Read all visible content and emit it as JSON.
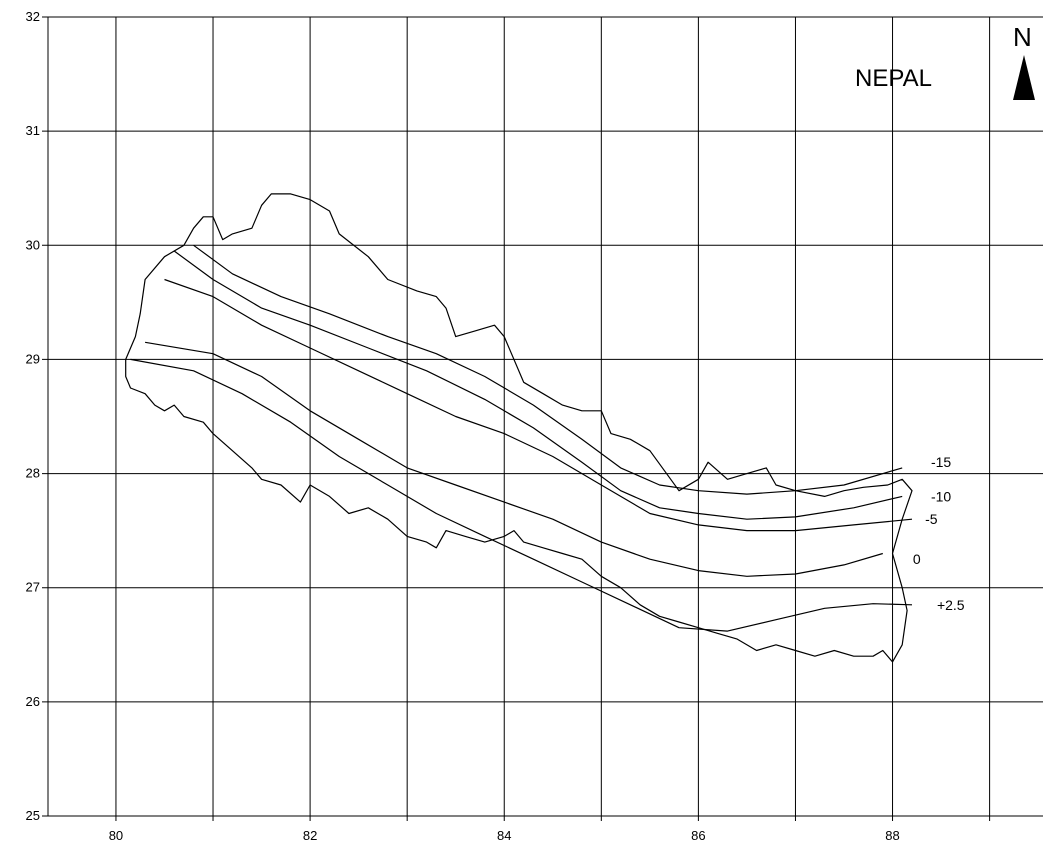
{
  "map": {
    "title": "NEPAL",
    "north_label": "N",
    "x_ticks": [
      80,
      82,
      84,
      86,
      88
    ],
    "y_ticks": [
      25,
      26,
      27,
      28,
      29,
      30,
      31,
      32
    ],
    "x_gridlines": [
      80,
      81,
      82,
      83,
      84,
      85,
      86,
      87,
      88,
      89
    ],
    "y_gridlines": [
      25,
      26,
      27,
      28,
      29,
      30,
      31,
      32
    ],
    "x_range": [
      79.3,
      89.55
    ],
    "y_range": [
      25,
      32
    ],
    "colors": {
      "line": "#000000",
      "background": "#ffffff"
    },
    "boundary": [
      [
        80.1,
        28.85
      ],
      [
        80.15,
        28.75
      ],
      [
        80.3,
        28.7
      ],
      [
        80.4,
        28.6
      ],
      [
        80.5,
        28.55
      ],
      [
        80.6,
        28.6
      ],
      [
        80.7,
        28.5
      ],
      [
        80.9,
        28.45
      ],
      [
        81.0,
        28.35
      ],
      [
        81.2,
        28.2
      ],
      [
        81.4,
        28.05
      ],
      [
        81.5,
        27.95
      ],
      [
        81.7,
        27.9
      ],
      [
        81.9,
        27.75
      ],
      [
        82.0,
        27.9
      ],
      [
        82.2,
        27.8
      ],
      [
        82.4,
        27.65
      ],
      [
        82.6,
        27.7
      ],
      [
        82.8,
        27.6
      ],
      [
        83.0,
        27.45
      ],
      [
        83.2,
        27.4
      ],
      [
        83.3,
        27.35
      ],
      [
        83.4,
        27.5
      ],
      [
        83.6,
        27.45
      ],
      [
        83.8,
        27.4
      ],
      [
        84.0,
        27.45
      ],
      [
        84.1,
        27.5
      ],
      [
        84.2,
        27.4
      ],
      [
        84.4,
        27.35
      ],
      [
        84.6,
        27.3
      ],
      [
        84.8,
        27.25
      ],
      [
        85.0,
        27.1
      ],
      [
        85.2,
        27.0
      ],
      [
        85.4,
        26.85
      ],
      [
        85.6,
        26.75
      ],
      [
        85.8,
        26.7
      ],
      [
        86.0,
        26.65
      ],
      [
        86.2,
        26.6
      ],
      [
        86.4,
        26.55
      ],
      [
        86.6,
        26.45
      ],
      [
        86.8,
        26.5
      ],
      [
        87.0,
        26.45
      ],
      [
        87.2,
        26.4
      ],
      [
        87.4,
        26.45
      ],
      [
        87.6,
        26.4
      ],
      [
        87.8,
        26.4
      ],
      [
        87.9,
        26.45
      ],
      [
        88.0,
        26.35
      ],
      [
        88.1,
        26.5
      ],
      [
        88.15,
        26.8
      ],
      [
        88.1,
        27.0
      ],
      [
        88.0,
        27.3
      ],
      [
        88.1,
        27.6
      ],
      [
        88.2,
        27.85
      ],
      [
        88.1,
        27.95
      ],
      [
        87.95,
        27.9
      ],
      [
        87.7,
        27.88
      ],
      [
        87.5,
        27.85
      ],
      [
        87.3,
        27.8
      ],
      [
        87.0,
        27.85
      ],
      [
        86.8,
        27.9
      ],
      [
        86.7,
        28.05
      ],
      [
        86.5,
        28.0
      ],
      [
        86.3,
        27.95
      ],
      [
        86.1,
        28.1
      ],
      [
        86.0,
        27.95
      ],
      [
        85.8,
        27.85
      ],
      [
        85.5,
        28.2
      ],
      [
        85.3,
        28.3
      ],
      [
        85.1,
        28.35
      ],
      [
        85.0,
        28.55
      ],
      [
        84.8,
        28.55
      ],
      [
        84.6,
        28.6
      ],
      [
        84.4,
        28.7
      ],
      [
        84.2,
        28.8
      ],
      [
        84.0,
        29.2
      ],
      [
        83.9,
        29.3
      ],
      [
        83.7,
        29.25
      ],
      [
        83.5,
        29.2
      ],
      [
        83.4,
        29.45
      ],
      [
        83.3,
        29.55
      ],
      [
        83.1,
        29.6
      ],
      [
        82.8,
        29.7
      ],
      [
        82.6,
        29.9
      ],
      [
        82.3,
        30.1
      ],
      [
        82.2,
        30.3
      ],
      [
        82.0,
        30.4
      ],
      [
        81.8,
        30.45
      ],
      [
        81.6,
        30.45
      ],
      [
        81.5,
        30.35
      ],
      [
        81.4,
        30.15
      ],
      [
        81.2,
        30.1
      ],
      [
        81.1,
        30.05
      ],
      [
        81.0,
        30.25
      ],
      [
        80.9,
        30.25
      ],
      [
        80.8,
        30.15
      ],
      [
        80.7,
        30.0
      ],
      [
        80.5,
        29.9
      ],
      [
        80.3,
        29.7
      ],
      [
        80.25,
        29.4
      ],
      [
        80.2,
        29.2
      ],
      [
        80.1,
        29.0
      ]
    ],
    "contours": [
      {
        "label": "-15",
        "points": [
          [
            80.8,
            30.0
          ],
          [
            81.2,
            29.75
          ],
          [
            81.7,
            29.55
          ],
          [
            82.2,
            29.4
          ],
          [
            82.8,
            29.2
          ],
          [
            83.3,
            29.05
          ],
          [
            83.8,
            28.85
          ],
          [
            84.3,
            28.6
          ],
          [
            84.8,
            28.3
          ],
          [
            85.2,
            28.05
          ],
          [
            85.6,
            27.9
          ],
          [
            86.0,
            27.85
          ],
          [
            86.5,
            27.82
          ],
          [
            87.0,
            27.85
          ],
          [
            87.5,
            27.9
          ],
          [
            88.1,
            28.05
          ]
        ],
        "label_at": [
          88.5,
          28.1
        ]
      },
      {
        "label": "-10",
        "points": [
          [
            80.6,
            29.95
          ],
          [
            81.0,
            29.7
          ],
          [
            81.5,
            29.45
          ],
          [
            82.0,
            29.3
          ],
          [
            82.6,
            29.1
          ],
          [
            83.2,
            28.9
          ],
          [
            83.8,
            28.65
          ],
          [
            84.3,
            28.4
          ],
          [
            84.8,
            28.1
          ],
          [
            85.2,
            27.85
          ],
          [
            85.6,
            27.7
          ],
          [
            86.0,
            27.65
          ],
          [
            86.5,
            27.6
          ],
          [
            87.0,
            27.62
          ],
          [
            87.6,
            27.7
          ],
          [
            88.1,
            27.8
          ]
        ],
        "label_at": [
          88.5,
          27.8
        ]
      },
      {
        "label": "-5",
        "points": [
          [
            80.5,
            29.7
          ],
          [
            81.0,
            29.55
          ],
          [
            81.5,
            29.3
          ],
          [
            82.0,
            29.1
          ],
          [
            82.5,
            28.9
          ],
          [
            83.0,
            28.7
          ],
          [
            83.5,
            28.5
          ],
          [
            84.0,
            28.35
          ],
          [
            84.5,
            28.15
          ],
          [
            85.0,
            27.9
          ],
          [
            85.5,
            27.65
          ],
          [
            86.0,
            27.55
          ],
          [
            86.5,
            27.5
          ],
          [
            87.0,
            27.5
          ],
          [
            87.6,
            27.55
          ],
          [
            88.2,
            27.6
          ]
        ],
        "label_at": [
          88.4,
          27.6
        ]
      },
      {
        "label": "0",
        "points": [
          [
            80.3,
            29.15
          ],
          [
            81.0,
            29.05
          ],
          [
            81.5,
            28.85
          ],
          [
            82.0,
            28.55
          ],
          [
            82.5,
            28.3
          ],
          [
            83.0,
            28.05
          ],
          [
            83.5,
            27.9
          ],
          [
            84.0,
            27.75
          ],
          [
            84.5,
            27.6
          ],
          [
            85.0,
            27.4
          ],
          [
            85.5,
            27.25
          ],
          [
            86.0,
            27.15
          ],
          [
            86.5,
            27.1
          ],
          [
            87.0,
            27.12
          ],
          [
            87.5,
            27.2
          ],
          [
            87.9,
            27.3
          ]
        ],
        "label_at": [
          88.25,
          27.25
        ]
      },
      {
        "label": "+2.5",
        "points": [
          [
            80.15,
            29.0
          ],
          [
            80.8,
            28.9
          ],
          [
            81.3,
            28.7
          ],
          [
            81.8,
            28.45
          ],
          [
            82.3,
            28.15
          ],
          [
            82.8,
            27.9
          ],
          [
            83.3,
            27.65
          ],
          [
            83.8,
            27.45
          ],
          [
            84.3,
            27.25
          ],
          [
            84.8,
            27.05
          ],
          [
            85.3,
            26.85
          ],
          [
            85.8,
            26.65
          ],
          [
            86.3,
            26.62
          ],
          [
            86.8,
            26.72
          ],
          [
            87.3,
            26.82
          ],
          [
            87.8,
            26.86
          ],
          [
            88.2,
            26.85
          ]
        ],
        "label_at": [
          88.6,
          26.85
        ]
      }
    ]
  }
}
